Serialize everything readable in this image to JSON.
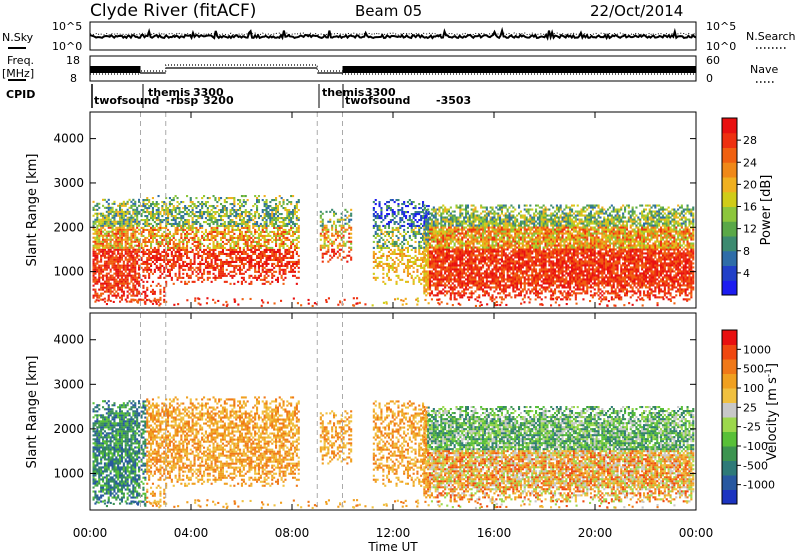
{
  "header": {
    "station": "Clyde River (fitACF)",
    "beam": "Beam 05",
    "date": "22/Oct/2014"
  },
  "nsky_panel": {
    "left_label": "N.Sky",
    "right_label": "N.Search",
    "left_ticks": [
      "10^5",
      "10^0"
    ],
    "right_ticks": [
      "10^5",
      "10^0"
    ]
  },
  "freq_panel": {
    "left_label_1": "Freq.",
    "left_label_2": "[MHz]",
    "right_label": "Nave",
    "left_ticks": [
      18,
      8
    ],
    "right_ticks": [
      60,
      0
    ]
  },
  "cpid_panel": {
    "label": "CPID",
    "programs": [
      {
        "name": "twofsound",
        "start": 0.05
      },
      {
        "name": "-rbsp",
        "start": 2.5
      },
      {
        "name": "themis",
        "start": 2.0
      },
      {
        "name": "3300",
        "start": 2.9
      },
      {
        "name": "3200",
        "start": 3.1
      },
      {
        "name": "themis",
        "start": 9.0
      },
      {
        "name": "3300",
        "start": 10.0
      },
      {
        "name": "twofsound",
        "start": 10.0
      },
      {
        "name": "-3503",
        "start": 13.9
      }
    ]
  },
  "chart_data": [
    {
      "type": "heatmap",
      "name": "power",
      "ylabel": "Slant Range [km]",
      "xlabel": "Time UT",
      "xlim": [
        0,
        24
      ],
      "ylim": [
        180,
        4600
      ],
      "xticks": [
        "00:00",
        "04:00",
        "08:00",
        "12:00",
        "16:00",
        "20:00",
        "00:00"
      ],
      "yticks": [
        1000,
        2000,
        3000,
        4000
      ],
      "colorbar": {
        "label": "Power [dB]",
        "ticks": [
          4,
          8,
          12,
          16,
          20,
          24,
          28
        ],
        "colors": [
          "#1c1cf0",
          "#2140c8",
          "#2e6da8",
          "#3c8a70",
          "#5aa848",
          "#8cc63c",
          "#d0cc18",
          "#f0b020",
          "#f08818",
          "#f06010",
          "#ee3010",
          "#e81010"
        ]
      },
      "program_boundaries": [
        2.0,
        3.0,
        9.0,
        10.0
      ]
    },
    {
      "type": "heatmap",
      "name": "velocity",
      "ylabel": "Slant Range [km]",
      "xlabel": "Time UT",
      "xlim": [
        0,
        24
      ],
      "ylim": [
        180,
        4600
      ],
      "xticks": [
        "00:00",
        "04:00",
        "08:00",
        "12:00",
        "16:00",
        "20:00",
        "00:00"
      ],
      "yticks": [
        1000,
        2000,
        3000,
        4000
      ],
      "colorbar": {
        "label": "Velocity [m s-1]",
        "ticks": [
          1000,
          500,
          100,
          25,
          -25,
          -100,
          -500,
          -1000
        ],
        "colors": [
          "#1c34c0",
          "#2858a0",
          "#2e7a78",
          "#3c9450",
          "#58c038",
          "#9cd84c",
          "#c8c8c8",
          "#f0c040",
          "#f0a020",
          "#f07818",
          "#f04810",
          "#e81010"
        ]
      },
      "program_boundaries": [
        2.0,
        3.0,
        9.0,
        10.0
      ]
    }
  ],
  "xaxis_title": "Time UT"
}
